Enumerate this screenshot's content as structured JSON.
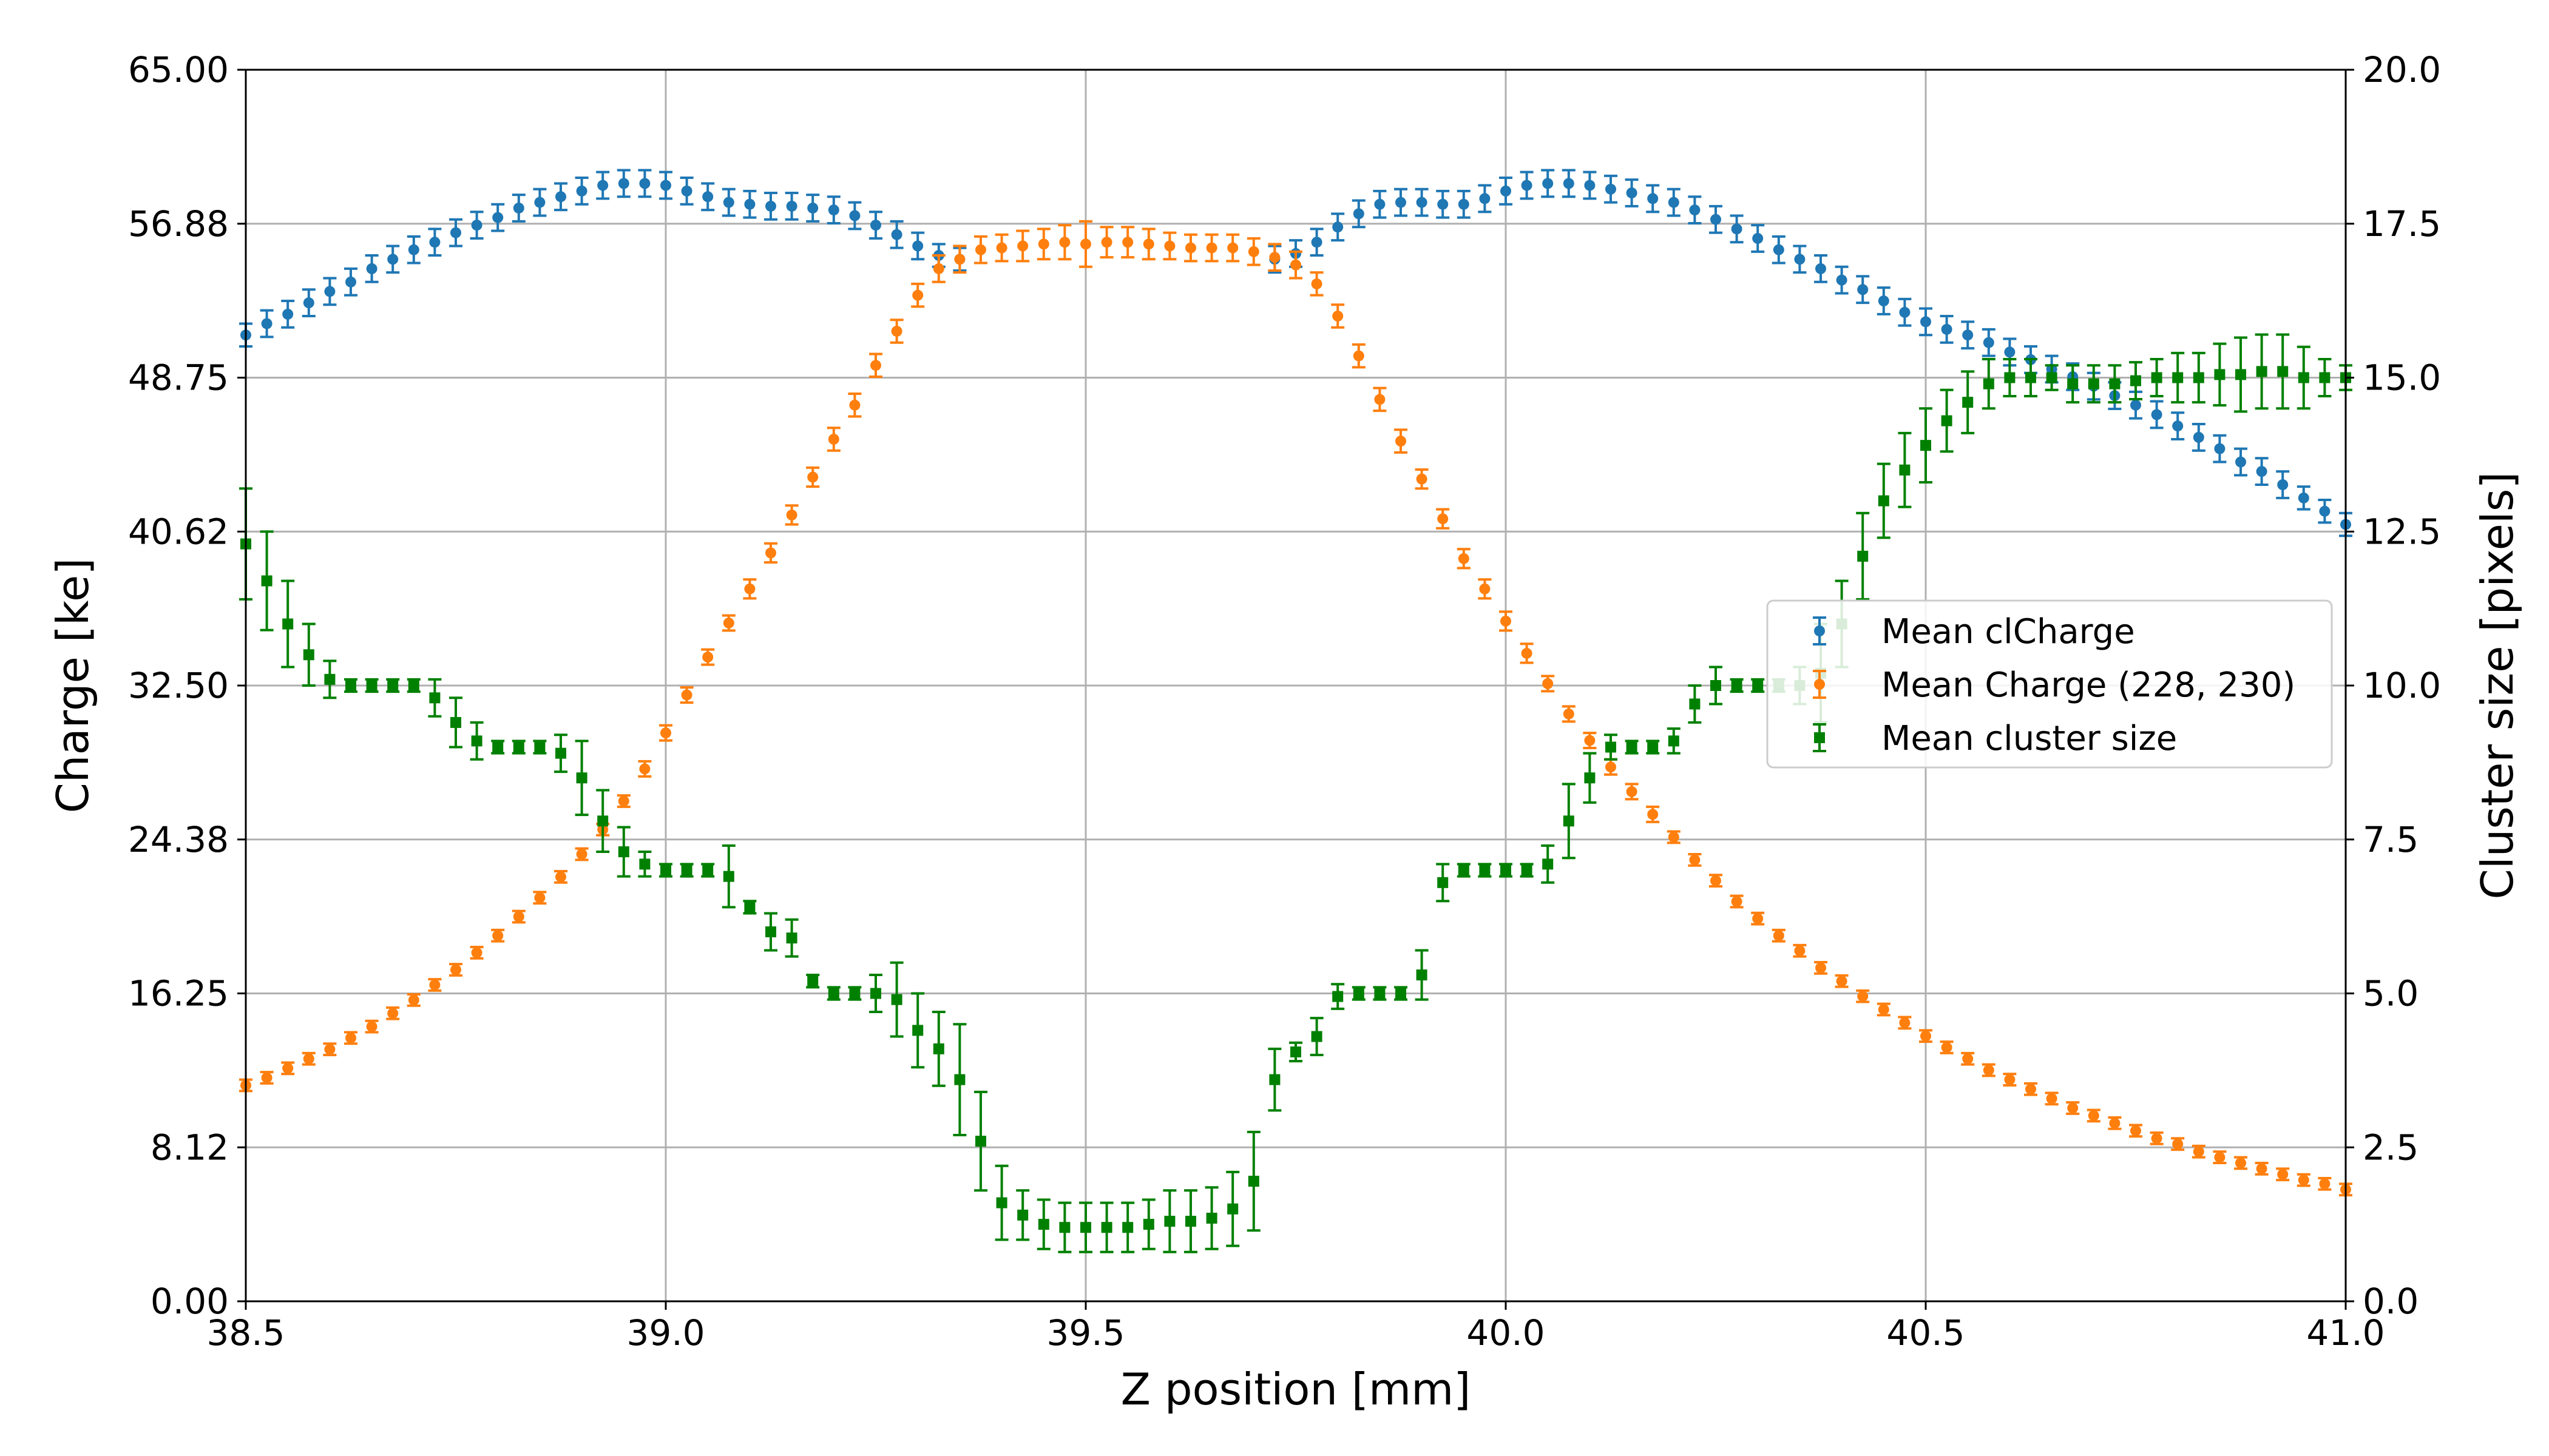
{
  "chart_data": {
    "type": "scatter",
    "title": "",
    "xlabel": "Z position [mm]",
    "ylabel": "Charge [ke]",
    "y2label": "Cluster size [pixels]",
    "xlim": [
      38.5,
      41.0
    ],
    "ylim": [
      0.0,
      65.0
    ],
    "y2lim": [
      0.0,
      20.0
    ],
    "x_ticks": [
      "38.5",
      "39.0",
      "39.5",
      "40.0",
      "40.5",
      "41.0"
    ],
    "x_tick_values": [
      38.5,
      39.0,
      39.5,
      40.0,
      40.5,
      41.0
    ],
    "y_ticks": [
      "0.00",
      "8.12",
      "16.25",
      "24.38",
      "32.50",
      "40.62",
      "48.75",
      "56.88",
      "65.00"
    ],
    "y_tick_values": [
      0,
      8.125,
      16.25,
      24.375,
      32.5,
      40.625,
      48.75,
      56.875,
      65.0
    ],
    "y2_ticks": [
      "0.0",
      "2.5",
      "5.0",
      "7.5",
      "10.0",
      "12.5",
      "15.0",
      "17.5",
      "20.0"
    ],
    "y2_tick_values": [
      0,
      2.5,
      5.0,
      7.5,
      10.0,
      12.5,
      15.0,
      17.5,
      20.0
    ],
    "grid": true,
    "legend_position": "right",
    "series": [
      {
        "name": "Mean clCharge",
        "axis": "left",
        "marker": "circle",
        "color": "#1f77b4",
        "x": [
          38.5,
          38.525,
          38.55,
          38.575,
          38.6,
          38.625,
          38.65,
          38.675,
          38.7,
          38.725,
          38.75,
          38.775,
          38.8,
          38.825,
          38.85,
          38.875,
          38.9,
          38.925,
          38.95,
          38.975,
          39.0,
          39.025,
          39.05,
          39.075,
          39.1,
          39.125,
          39.15,
          39.175,
          39.2,
          39.225,
          39.25,
          39.275,
          39.3,
          39.325,
          39.35,
          39.375,
          39.4,
          39.425,
          39.45,
          39.475,
          39.5,
          39.525,
          39.55,
          39.575,
          39.6,
          39.625,
          39.65,
          39.675,
          39.7,
          39.725,
          39.75,
          39.775,
          39.8,
          39.825,
          39.85,
          39.875,
          39.9,
          39.925,
          39.95,
          39.975,
          40.0,
          40.025,
          40.05,
          40.075,
          40.1,
          40.125,
          40.15,
          40.175,
          40.2,
          40.225,
          40.25,
          40.275,
          40.3,
          40.325,
          40.35,
          40.375,
          40.4,
          40.425,
          40.45,
          40.475,
          40.5,
          40.525,
          40.55,
          40.575,
          40.6,
          40.625,
          40.65,
          40.675,
          40.7,
          40.725,
          40.75,
          40.775,
          40.8,
          40.825,
          40.85,
          40.875,
          40.9,
          40.925,
          40.95,
          40.975,
          41.0
        ],
        "y": [
          51.0,
          51.6,
          52.1,
          52.7,
          53.3,
          53.8,
          54.5,
          55.0,
          55.5,
          55.9,
          56.4,
          56.8,
          57.2,
          57.7,
          58.0,
          58.3,
          58.6,
          58.9,
          59.0,
          59.0,
          58.9,
          58.6,
          58.3,
          58.0,
          57.9,
          57.8,
          57.8,
          57.7,
          57.6,
          57.3,
          56.8,
          56.3,
          55.7,
          55.2,
          55.0,
          null,
          null,
          null,
          null,
          null,
          null,
          null,
          null,
          null,
          null,
          null,
          null,
          null,
          null,
          55.0,
          55.3,
          55.9,
          56.7,
          57.4,
          57.9,
          58.0,
          58.0,
          57.9,
          57.9,
          58.2,
          58.6,
          58.9,
          59.0,
          59.0,
          58.9,
          58.7,
          58.5,
          58.2,
          58.0,
          57.6,
          57.1,
          56.6,
          56.1,
          55.5,
          55.0,
          54.5,
          53.9,
          53.4,
          52.8,
          52.2,
          51.7,
          51.3,
          51.0,
          50.6,
          50.1,
          49.7,
          49.2,
          48.8,
          48.3,
          47.8,
          47.3,
          46.8,
          46.2,
          45.6,
          45.0,
          44.3,
          43.8,
          43.1,
          42.4,
          41.7,
          41.0
        ],
        "err": [
          0.6,
          0.7,
          0.7,
          0.7,
          0.7,
          0.7,
          0.7,
          0.7,
          0.7,
          0.7,
          0.7,
          0.7,
          0.7,
          0.7,
          0.7,
          0.7,
          0.7,
          0.7,
          0.7,
          0.7,
          0.7,
          0.7,
          0.7,
          0.7,
          0.7,
          0.7,
          0.7,
          0.7,
          0.7,
          0.7,
          0.7,
          0.7,
          0.7,
          0.6,
          0.6,
          null,
          null,
          null,
          null,
          null,
          null,
          null,
          null,
          null,
          null,
          null,
          null,
          null,
          null,
          0.7,
          0.7,
          0.7,
          0.7,
          0.7,
          0.7,
          0.7,
          0.7,
          0.7,
          0.7,
          0.7,
          0.7,
          0.7,
          0.7,
          0.7,
          0.7,
          0.7,
          0.7,
          0.7,
          0.7,
          0.7,
          0.7,
          0.7,
          0.7,
          0.7,
          0.7,
          0.7,
          0.7,
          0.7,
          0.7,
          0.7,
          0.7,
          0.7,
          0.7,
          0.7,
          0.7,
          0.7,
          0.7,
          0.7,
          0.7,
          0.7,
          0.7,
          0.7,
          0.7,
          0.7,
          0.7,
          0.7,
          0.7,
          0.7,
          0.6,
          0.6,
          0.6
        ]
      },
      {
        "name": "Mean Charge (228, 230)",
        "axis": "left",
        "marker": "circle",
        "color": "#ff7f0e",
        "x": [
          38.5,
          38.525,
          38.55,
          38.575,
          38.6,
          38.625,
          38.65,
          38.675,
          38.7,
          38.725,
          38.75,
          38.775,
          38.8,
          38.825,
          38.85,
          38.875,
          38.9,
          38.925,
          38.95,
          38.975,
          39.0,
          39.025,
          39.05,
          39.075,
          39.1,
          39.125,
          39.15,
          39.175,
          39.2,
          39.225,
          39.25,
          39.275,
          39.3,
          39.325,
          39.35,
          39.375,
          39.4,
          39.425,
          39.45,
          39.475,
          39.5,
          39.525,
          39.55,
          39.575,
          39.6,
          39.625,
          39.65,
          39.675,
          39.7,
          39.725,
          39.75,
          39.775,
          39.8,
          39.825,
          39.85,
          39.875,
          39.9,
          39.925,
          39.95,
          39.975,
          40.0,
          40.025,
          40.05,
          40.075,
          40.1,
          40.125,
          40.15,
          40.175,
          40.2,
          40.225,
          40.25,
          40.275,
          40.3,
          40.325,
          40.35,
          40.375,
          40.4,
          40.425,
          40.45,
          40.475,
          40.5,
          40.525,
          40.55,
          40.575,
          40.6,
          40.625,
          40.65,
          40.675,
          40.7,
          40.725,
          40.75,
          40.775,
          40.8,
          40.825,
          40.85,
          40.875,
          40.9,
          40.925,
          40.95,
          40.975,
          41.0
        ],
        "y": [
          11.4,
          11.8,
          12.3,
          12.8,
          13.3,
          13.9,
          14.5,
          15.2,
          15.9,
          16.7,
          17.5,
          18.4,
          19.3,
          20.3,
          21.3,
          22.4,
          23.6,
          24.9,
          26.4,
          28.1,
          30.0,
          32.0,
          34.0,
          35.8,
          37.6,
          39.5,
          41.5,
          43.5,
          45.5,
          47.3,
          49.4,
          51.2,
          53.1,
          54.5,
          55.0,
          55.5,
          55.6,
          55.7,
          55.8,
          55.9,
          55.8,
          55.9,
          55.9,
          55.8,
          55.7,
          55.6,
          55.6,
          55.6,
          55.4,
          55.1,
          54.7,
          53.7,
          52.0,
          49.9,
          47.6,
          45.4,
          43.4,
          41.3,
          39.2,
          37.6,
          35.9,
          34.2,
          32.6,
          31.0,
          29.6,
          28.2,
          26.9,
          25.7,
          24.5,
          23.3,
          22.2,
          21.1,
          20.2,
          19.3,
          18.5,
          17.6,
          16.9,
          16.1,
          15.4,
          14.7,
          14.0,
          13.4,
          12.8,
          12.2,
          11.7,
          11.2,
          10.7,
          10.2,
          9.8,
          9.4,
          9.0,
          8.6,
          8.3,
          7.9,
          7.6,
          7.3,
          7.0,
          6.7,
          6.4,
          6.2,
          5.9
        ],
        "err": [
          0.3,
          0.3,
          0.3,
          0.3,
          0.3,
          0.3,
          0.3,
          0.3,
          0.3,
          0.3,
          0.3,
          0.3,
          0.3,
          0.3,
          0.3,
          0.3,
          0.3,
          0.3,
          0.3,
          0.4,
          0.4,
          0.4,
          0.4,
          0.4,
          0.5,
          0.5,
          0.5,
          0.5,
          0.6,
          0.6,
          0.6,
          0.6,
          0.6,
          0.7,
          0.7,
          0.7,
          0.7,
          0.8,
          0.8,
          0.9,
          1.2,
          0.8,
          0.8,
          0.8,
          0.7,
          0.7,
          0.7,
          0.7,
          0.7,
          0.7,
          0.7,
          0.6,
          0.6,
          0.6,
          0.6,
          0.6,
          0.5,
          0.5,
          0.5,
          0.5,
          0.5,
          0.5,
          0.4,
          0.4,
          0.4,
          0.4,
          0.4,
          0.4,
          0.3,
          0.3,
          0.3,
          0.3,
          0.3,
          0.3,
          0.3,
          0.3,
          0.3,
          0.3,
          0.3,
          0.3,
          0.3,
          0.3,
          0.3,
          0.3,
          0.3,
          0.3,
          0.3,
          0.3,
          0.3,
          0.3,
          0.3,
          0.3,
          0.3,
          0.3,
          0.3,
          0.3,
          0.3,
          0.3,
          0.3,
          0.3,
          0.3
        ]
      },
      {
        "name": "Mean cluster size",
        "axis": "right",
        "marker": "square",
        "color": "#008000",
        "x": [
          38.5,
          38.525,
          38.55,
          38.575,
          38.6,
          38.625,
          38.65,
          38.675,
          38.7,
          38.725,
          38.75,
          38.775,
          38.8,
          38.825,
          38.85,
          38.875,
          38.9,
          38.925,
          38.95,
          38.975,
          39.0,
          39.025,
          39.05,
          39.075,
          39.1,
          39.125,
          39.15,
          39.175,
          39.2,
          39.225,
          39.25,
          39.275,
          39.3,
          39.325,
          39.35,
          39.375,
          39.4,
          39.425,
          39.45,
          39.475,
          39.5,
          39.525,
          39.55,
          39.575,
          39.6,
          39.625,
          39.65,
          39.675,
          39.7,
          39.725,
          39.75,
          39.775,
          39.8,
          39.825,
          39.85,
          39.875,
          39.9,
          39.925,
          39.95,
          39.975,
          40.0,
          40.025,
          40.05,
          40.075,
          40.1,
          40.125,
          40.15,
          40.175,
          40.2,
          40.225,
          40.25,
          40.275,
          40.3,
          40.325,
          40.35,
          40.375,
          40.4,
          40.425,
          40.45,
          40.475,
          40.5,
          40.525,
          40.55,
          40.575,
          40.6,
          40.625,
          40.65,
          40.675,
          40.7,
          40.725,
          40.75,
          40.775,
          40.8,
          40.825,
          40.85,
          40.875,
          40.9,
          40.925,
          40.95,
          40.975,
          41.0
        ],
        "y": [
          12.3,
          11.7,
          11.0,
          10.5,
          10.1,
          10.0,
          10.0,
          10.0,
          10.0,
          9.8,
          9.4,
          9.1,
          9.0,
          9.0,
          9.0,
          8.9,
          8.5,
          7.8,
          7.3,
          7.1,
          7.0,
          7.0,
          7.0,
          6.9,
          6.4,
          6.0,
          5.9,
          5.2,
          5.0,
          5.0,
          5.0,
          4.9,
          4.4,
          4.1,
          3.6,
          2.6,
          1.6,
          1.4,
          1.25,
          1.2,
          1.2,
          1.2,
          1.2,
          1.25,
          1.3,
          1.3,
          1.35,
          1.5,
          1.95,
          3.6,
          4.05,
          4.3,
          4.95,
          5.0,
          5.0,
          5.0,
          5.3,
          6.8,
          7.0,
          7.0,
          7.0,
          7.0,
          7.1,
          7.8,
          8.5,
          9.0,
          9.0,
          9.0,
          9.1,
          9.7,
          10.0,
          10.0,
          10.0,
          10.0,
          10.0,
          10.2,
          11.0,
          12.1,
          13.0,
          13.5,
          13.9,
          14.3,
          14.6,
          14.9,
          15.0,
          15.0,
          15.0,
          14.9,
          14.9,
          14.9,
          14.95,
          15.0,
          15.0,
          15.0,
          15.05,
          15.05,
          15.1,
          15.1,
          15.0,
          15.0,
          15.0
        ],
        "err": [
          0.9,
          0.8,
          0.7,
          0.5,
          0.3,
          0.1,
          0.1,
          0.1,
          0.1,
          0.3,
          0.4,
          0.3,
          0.1,
          0.1,
          0.1,
          0.3,
          0.6,
          0.5,
          0.4,
          0.2,
          0.1,
          0.1,
          0.1,
          0.5,
          0.1,
          0.3,
          0.3,
          0.1,
          0.1,
          0.1,
          0.3,
          0.6,
          0.6,
          0.6,
          0.9,
          0.8,
          0.6,
          0.4,
          0.4,
          0.4,
          0.4,
          0.4,
          0.4,
          0.4,
          0.5,
          0.5,
          0.5,
          0.6,
          0.8,
          0.5,
          0.15,
          0.3,
          0.2,
          0.1,
          0.1,
          0.1,
          0.4,
          0.3,
          0.1,
          0.1,
          0.1,
          0.1,
          0.3,
          0.6,
          0.4,
          0.2,
          0.1,
          0.1,
          0.2,
          0.3,
          0.3,
          0.1,
          0.1,
          0.1,
          0.3,
          0.8,
          0.7,
          0.7,
          0.6,
          0.6,
          0.6,
          0.5,
          0.5,
          0.4,
          0.3,
          0.3,
          0.2,
          0.3,
          0.3,
          0.3,
          0.3,
          0.3,
          0.4,
          0.4,
          0.5,
          0.6,
          0.6,
          0.6,
          0.5,
          0.3,
          0.2
        ]
      }
    ]
  }
}
